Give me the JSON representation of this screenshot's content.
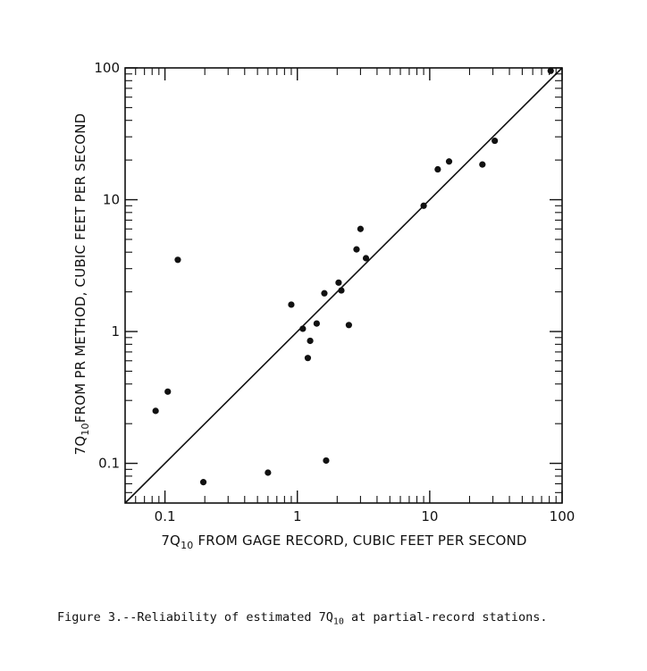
{
  "chart_data": {
    "type": "scatter",
    "xscale": "log",
    "yscale": "log",
    "xlim": [
      0.05,
      100
    ],
    "ylim": [
      0.05,
      100
    ],
    "xticks": [
      {
        "value": 0.1,
        "label": "0.1"
      },
      {
        "value": 1,
        "label": "1"
      },
      {
        "value": 10,
        "label": "10"
      },
      {
        "value": 100,
        "label": "100"
      }
    ],
    "yticks": [
      {
        "value": 0.1,
        "label": "0.1"
      },
      {
        "value": 1,
        "label": "1"
      },
      {
        "value": 10,
        "label": "10"
      },
      {
        "value": 100,
        "label": "100"
      }
    ],
    "xlabel": {
      "prefix": "7Q",
      "sub": "10",
      "rest": " FROM GAGE RECORD, CUBIC FEET PER SECOND"
    },
    "ylabel": {
      "prefix": "7Q",
      "sub": "10",
      "rest": "FROM PR METHOD,  CUBIC FEET PER SECOND"
    },
    "reference_line": {
      "type": "1:1 line",
      "from": [
        0.05,
        0.05
      ],
      "to": [
        100,
        100
      ]
    },
    "grid": false,
    "points": [
      {
        "x": 0.085,
        "y": 0.25
      },
      {
        "x": 0.105,
        "y": 0.35
      },
      {
        "x": 0.125,
        "y": 3.5
      },
      {
        "x": 0.195,
        "y": 0.072
      },
      {
        "x": 0.6,
        "y": 0.085
      },
      {
        "x": 0.9,
        "y": 1.6
      },
      {
        "x": 1.1,
        "y": 1.05
      },
      {
        "x": 1.2,
        "y": 0.63
      },
      {
        "x": 1.25,
        "y": 0.85
      },
      {
        "x": 1.4,
        "y": 1.15
      },
      {
        "x": 1.6,
        "y": 1.95
      },
      {
        "x": 1.65,
        "y": 0.105
      },
      {
        "x": 2.05,
        "y": 2.35
      },
      {
        "x": 2.15,
        "y": 2.05
      },
      {
        "x": 2.45,
        "y": 1.12
      },
      {
        "x": 2.8,
        "y": 4.2
      },
      {
        "x": 3.0,
        "y": 6.0
      },
      {
        "x": 3.3,
        "y": 3.6
      },
      {
        "x": 9.0,
        "y": 9.0
      },
      {
        "x": 11.5,
        "y": 17.0
      },
      {
        "x": 14.0,
        "y": 19.5
      },
      {
        "x": 25.0,
        "y": 18.5
      },
      {
        "x": 31.0,
        "y": 28.0
      },
      {
        "x": 82.0,
        "y": 95.0
      }
    ]
  },
  "caption": {
    "prefix": "Figure 3.--Reliability of estimated 7Q",
    "sub": "10",
    "suffix": " at partial-record stations."
  }
}
